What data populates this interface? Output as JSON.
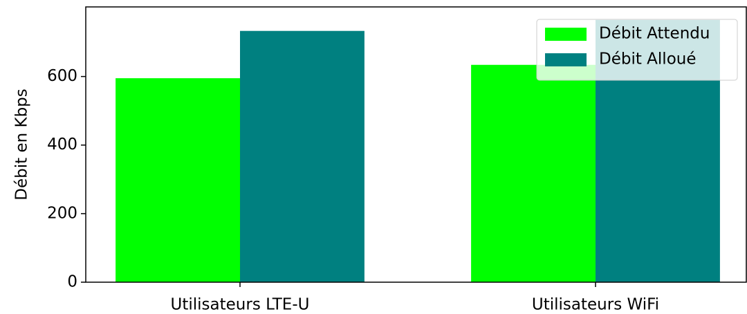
{
  "chart_data": {
    "type": "bar",
    "ylabel": "Débit en Kbps",
    "categories": [
      "Utilisateurs LTE-U",
      "Utilisateurs WiFi"
    ],
    "series": [
      {
        "name": "Débit Attendu",
        "color": "#00ff00",
        "values": [
          595,
          634
        ]
      },
      {
        "name": "Débit Alloué",
        "color": "#008080",
        "values": [
          733,
          765
        ]
      }
    ],
    "ylim": [
      0,
      803
    ],
    "yticks": [
      0,
      200,
      400,
      600
    ],
    "legend": "upper right"
  }
}
